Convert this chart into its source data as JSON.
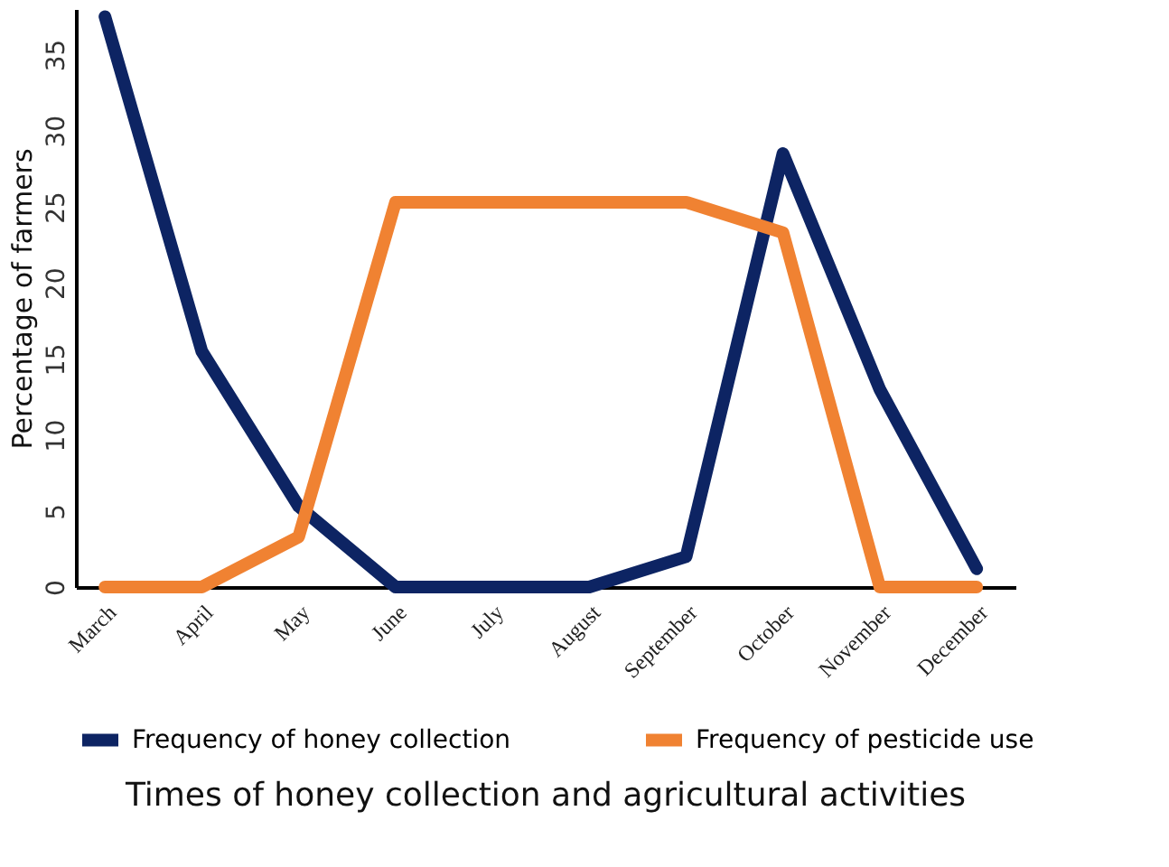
{
  "chart_data": {
    "type": "line",
    "xlabel": "Times of honey collection and agricultural activities",
    "ylabel": "Percentage of farmers",
    "categories": [
      "March",
      "April",
      "May",
      "June",
      "July",
      "August",
      "September",
      "October",
      "November",
      "December"
    ],
    "series": [
      {
        "name": "Frequency of honey collection",
        "color": "#0d2463",
        "values": [
          37.5,
          15.5,
          5.3,
          0,
          0,
          0,
          2,
          28.5,
          13,
          1.2
        ]
      },
      {
        "name": "Frequency of pesticide use",
        "color": "#f08232",
        "values": [
          0,
          0,
          3.3,
          25.3,
          25.3,
          25.3,
          25.3,
          23.3,
          0,
          0
        ]
      }
    ],
    "ylim": [
      0,
      38
    ],
    "yticks": [
      0,
      5,
      10,
      15,
      20,
      25,
      30,
      35
    ],
    "grid": false,
    "legend": "bottom",
    "marker": "none",
    "line_style": "solid"
  }
}
